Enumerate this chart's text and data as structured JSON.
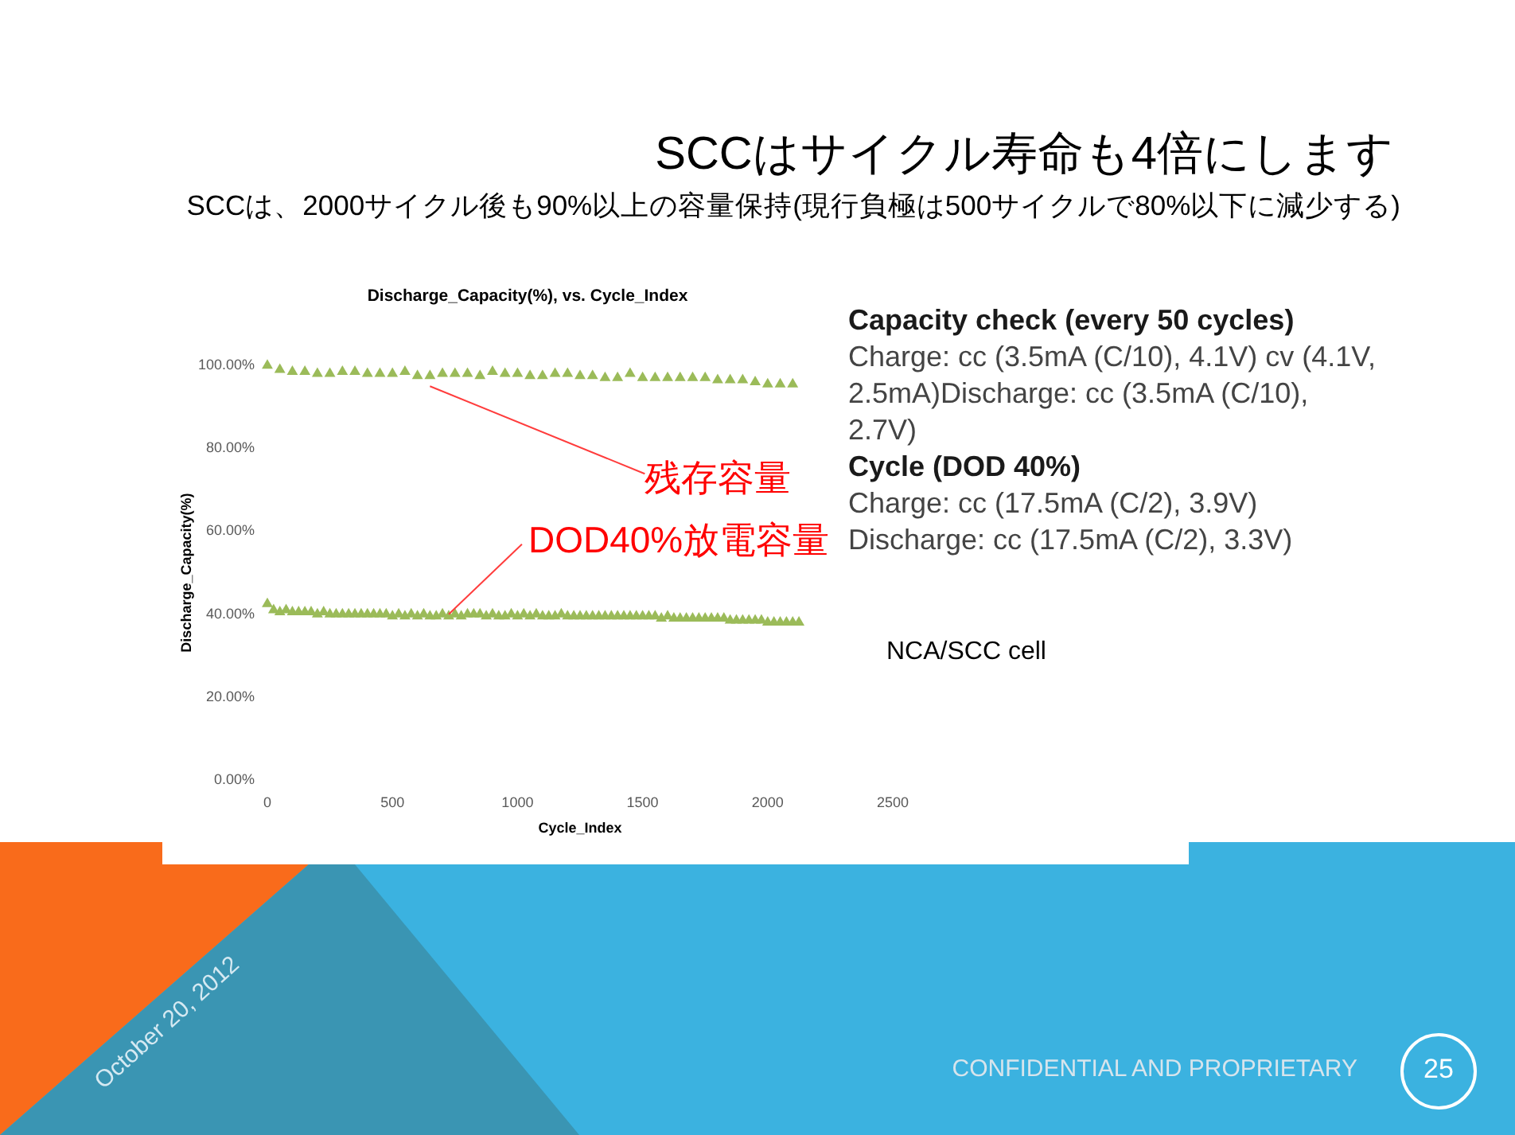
{
  "chart_data": {
    "type": "scatter",
    "title": "SCCはサイクル寿命も4倍にします",
    "subtitle": "SCCは、2000サイクル後も90%以上の容量保持(現行負極は500サイクルで80%以下に減少する)",
    "xlabel": "Cycle_Index",
    "ylabel": "Discharge_Capacity(%)",
    "marker": "triangle",
    "xlim": [
      0,
      2500
    ],
    "xticks": [
      0,
      500,
      1000,
      1500,
      2000,
      2500
    ],
    "ylim": [
      0,
      100
    ],
    "yticks": [
      {
        "value": 0,
        "label": "0.00%"
      },
      {
        "value": 20,
        "label": "20.00%"
      },
      {
        "value": 40,
        "label": "40.00%"
      },
      {
        "value": 60,
        "label": "60.00%"
      },
      {
        "value": 80,
        "label": "80.00%"
      },
      {
        "value": 100,
        "label": "100.00%"
      }
    ],
    "series": [
      {
        "color": "#9bbb59",
        "x": [
          0,
          50,
          100,
          150,
          200,
          250,
          300,
          350,
          400,
          450,
          500,
          550,
          600,
          650,
          700,
          750,
          800,
          850,
          900,
          950,
          1000,
          1050,
          1100,
          1150,
          1200,
          1250,
          1300,
          1350,
          1400,
          1450,
          1500,
          1550,
          1600,
          1650,
          1700,
          1750,
          1800,
          1850,
          1900,
          1950,
          2000,
          2050,
          2100
        ],
        "values": [
          100,
          99,
          98.5,
          98.5,
          98,
          98,
          98.5,
          98.5,
          98,
          98,
          98,
          98.5,
          97.5,
          97.5,
          98,
          98,
          98,
          97.5,
          98.5,
          98,
          98,
          97.5,
          97.5,
          98,
          98,
          97.5,
          97.5,
          97,
          97,
          98,
          97,
          97,
          97,
          97,
          97,
          97,
          96.5,
          96.5,
          96.5,
          96,
          95.5,
          95.5,
          95.5
        ]
      },
      {
        "color": "#9bbb59",
        "x": [
          0,
          25,
          50,
          75,
          100,
          125,
          150,
          175,
          200,
          225,
          250,
          275,
          300,
          325,
          350,
          375,
          400,
          425,
          450,
          475,
          500,
          525,
          550,
          575,
          600,
          625,
          650,
          675,
          700,
          725,
          750,
          775,
          800,
          825,
          850,
          875,
          900,
          925,
          950,
          975,
          1000,
          1025,
          1050,
          1075,
          1100,
          1125,
          1150,
          1175,
          1200,
          1225,
          1250,
          1275,
          1300,
          1325,
          1350,
          1375,
          1400,
          1425,
          1450,
          1475,
          1500,
          1525,
          1550,
          1575,
          1600,
          1625,
          1650,
          1675,
          1700,
          1725,
          1750,
          1775,
          1800,
          1825,
          1850,
          1875,
          1900,
          1925,
          1950,
          1975,
          2000,
          2025,
          2050,
          2075,
          2100,
          2125
        ],
        "values": [
          42.5,
          41,
          40.5,
          41,
          40.5,
          40.5,
          40.5,
          40.5,
          40,
          40.5,
          40,
          40,
          40,
          40,
          40,
          40,
          40,
          40,
          40,
          40,
          39.5,
          40,
          39.5,
          40,
          39.5,
          40,
          39.5,
          39.5,
          40,
          39.5,
          40,
          39.5,
          40,
          40,
          40,
          39.5,
          40,
          39.5,
          39.5,
          40,
          39.5,
          40,
          39.5,
          40,
          39.5,
          39.5,
          39.5,
          40,
          39.5,
          39.5,
          39.5,
          39.5,
          39.5,
          39.5,
          39.5,
          39.5,
          39.5,
          39.5,
          39.5,
          39.5,
          39.5,
          39.5,
          39.5,
          39,
          39.5,
          39,
          39,
          39,
          39,
          39,
          39,
          39,
          39,
          39,
          38.5,
          38.5,
          38.5,
          38.5,
          38.5,
          38.5,
          38,
          38,
          38,
          38,
          38,
          38
        ]
      }
    ],
    "annotations": [
      "Discharge_Capacity(%), vs. Cycle_Index",
      "Capacity check (every 50 cycles)",
      "Charge: cc (3.5mA (C/10), 4.1V) cv (4.1V, 2.5mA)Discharge: cc (3.5mA (C/10), 2.7V)",
      "Cycle (DOD 40%)",
      "Charge: cc (17.5mA (C/2), 3.9V)",
      "Discharge: cc (17.5mA (C/2), 3.3V)",
      "NCA/SCC cell",
      "October 20, 2012",
      "CONFIDENTIAL AND PROPRIETARY",
      "25",
      {
        "text": "残存容量",
        "x": 650,
        "y": 95
      },
      {
        "text": "DOD40%放電容量",
        "x": 725,
        "y": 40
      }
    ]
  }
}
